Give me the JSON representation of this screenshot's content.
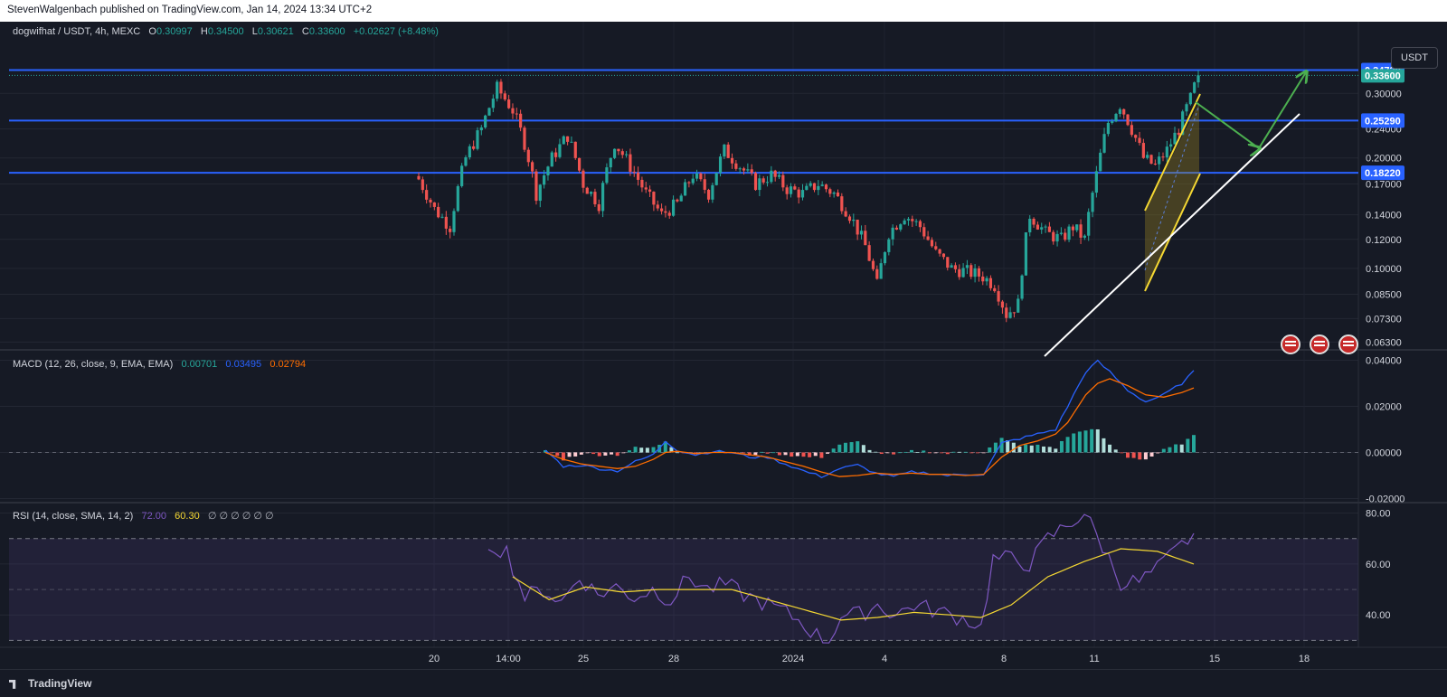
{
  "header": {
    "publisher": "StevenWalgenbach published on TradingView.com, Jan 14, 2024 13:34 UTC+2"
  },
  "footer": {
    "brand": "TradingView"
  },
  "currency_button": "USDT",
  "symbol_legend": {
    "name": "dogwifhat / USDT, 4h, MEXC",
    "o_label": "O",
    "o": "0.30997",
    "h_label": "H",
    "h": "0.34500",
    "l_label": "L",
    "l": "0.30621",
    "c_label": "C",
    "c": "0.33600",
    "change": "+0.02627 (+8.48%)"
  },
  "macd_legend": {
    "name": "MACD (12, 26, close, 9, EMA, EMA)",
    "hist": "0.00701",
    "macd": "0.03495",
    "signal": "0.02794"
  },
  "rsi_legend": {
    "name": "RSI (14, close, SMA, 14, 2)",
    "rsi": "72.00",
    "sma": "60.30",
    "extra": "∅ ∅ ∅ ∅ ∅ ∅"
  },
  "colors": {
    "up": "#26a69a",
    "down": "#ef5350",
    "level": "#2962ff",
    "macd": "#2962ff",
    "signal": "#ff6d00",
    "rsi": "#7e57c2",
    "rsi_sma": "#f5d833"
  },
  "chart_data": [
    {
      "type": "candlestick",
      "title": "dogwifhat / USDT, 4h, MEXC",
      "y_scale": "log",
      "ylim": [
        0.061,
        0.42
      ],
      "y_ticks": [
        "0.30000",
        "0.24000",
        "0.20000",
        "0.17000",
        "0.14000",
        "0.12000",
        "0.10000",
        "0.08500",
        "0.07300",
        "0.06300"
      ],
      "x_ticks": [
        "20",
        "14:00",
        "25",
        "28",
        "2024",
        "4",
        "8",
        "11",
        "15",
        "18"
      ],
      "levels": [
        {
          "label": "0.34730",
          "value": 0.3473
        },
        {
          "label": "0.25290",
          "value": 0.2529
        },
        {
          "label": "0.18220",
          "value": 0.1822
        }
      ],
      "last_price": {
        "label": "0.33600",
        "value": 0.336
      },
      "close_path_anchors": [
        [
          0,
          0.175
        ],
        [
          4,
          0.145
        ],
        [
          8,
          0.13
        ],
        [
          12,
          0.2
        ],
        [
          16,
          0.24
        ],
        [
          20,
          0.31
        ],
        [
          24,
          0.27
        ],
        [
          27,
          0.22
        ],
        [
          30,
          0.16
        ],
        [
          34,
          0.2
        ],
        [
          38,
          0.23
        ],
        [
          42,
          0.17
        ],
        [
          46,
          0.15
        ],
        [
          50,
          0.22
        ],
        [
          54,
          0.19
        ],
        [
          58,
          0.16
        ],
        [
          62,
          0.14
        ],
        [
          66,
          0.15
        ],
        [
          70,
          0.18
        ],
        [
          74,
          0.16
        ],
        [
          78,
          0.21
        ],
        [
          82,
          0.19
        ],
        [
          86,
          0.17
        ],
        [
          90,
          0.18
        ],
        [
          94,
          0.165
        ],
        [
          98,
          0.16
        ],
        [
          102,
          0.17
        ],
        [
          106,
          0.16
        ],
        [
          110,
          0.14
        ],
        [
          114,
          0.115
        ],
        [
          117,
          0.09
        ],
        [
          120,
          0.125
        ],
        [
          124,
          0.14
        ],
        [
          128,
          0.13
        ],
        [
          132,
          0.11
        ],
        [
          136,
          0.1
        ],
        [
          140,
          0.098
        ],
        [
          144,
          0.095
        ],
        [
          147,
          0.09
        ],
        [
          150,
          0.075
        ],
        [
          153,
          0.08
        ],
        [
          156,
          0.14
        ],
        [
          160,
          0.125
        ],
        [
          164,
          0.12
        ],
        [
          167,
          0.13
        ],
        [
          170,
          0.12
        ],
        [
          173,
          0.18
        ],
        [
          176,
          0.25
        ],
        [
          179,
          0.28
        ],
        [
          182,
          0.24
        ],
        [
          185,
          0.2
        ],
        [
          188,
          0.19
        ],
        [
          191,
          0.21
        ],
        [
          194,
          0.24
        ],
        [
          197,
          0.29
        ],
        [
          199,
          0.336
        ]
      ],
      "drawings": [
        {
          "name": "ascending-support-line",
          "color": "#ffffff",
          "from": [
            1155,
            370
          ],
          "to": [
            1437,
            102
          ]
        },
        {
          "name": "rising-channel",
          "color": "#f5d833"
        },
        {
          "name": "projected-path-arrow",
          "color": "#4caf50"
        }
      ]
    },
    {
      "type": "bar",
      "title": "MACD (12, 26, close, 9, EMA, EMA)",
      "ylim": [
        -0.021,
        0.041
      ],
      "y_ticks": [
        "0.04000",
        "0.02000",
        "0.00000",
        "-0.02000"
      ],
      "series": [
        {
          "name": "MACD",
          "last": 0.03495
        },
        {
          "name": "Signal",
          "last": 0.02794
        },
        {
          "name": "Histogram",
          "last": 0.00701
        }
      ],
      "macd_anchors": [
        [
          0,
          0.001
        ],
        [
          3,
          -0.006
        ],
        [
          6,
          -0.0055
        ],
        [
          9,
          -0.007
        ],
        [
          12,
          -0.008
        ],
        [
          15,
          -0.004
        ],
        [
          18,
          -0.001
        ],
        [
          20,
          0.005
        ],
        [
          22,
          0.001
        ],
        [
          25,
          -0.001
        ],
        [
          28,
          0.0005
        ],
        [
          31,
          0.0
        ],
        [
          34,
          -0.002
        ],
        [
          37,
          -0.002
        ],
        [
          40,
          -0.005
        ],
        [
          43,
          -0.008
        ],
        [
          46,
          -0.0105
        ],
        [
          49,
          -0.007
        ],
        [
          52,
          -0.0055
        ],
        [
          55,
          -0.009
        ],
        [
          58,
          -0.0105
        ],
        [
          61,
          -0.0085
        ],
        [
          64,
          -0.009
        ],
        [
          67,
          -0.01
        ],
        [
          70,
          -0.0095
        ],
        [
          73,
          -0.0095
        ],
        [
          76,
          0.004
        ],
        [
          79,
          0.006
        ],
        [
          82,
          0.008
        ],
        [
          85,
          0.01
        ],
        [
          87,
          0.02
        ],
        [
          90,
          0.035
        ],
        [
          92,
          0.0395
        ],
        [
          94,
          0.035
        ],
        [
          97,
          0.027
        ],
        [
          100,
          0.022
        ],
        [
          103,
          0.025
        ],
        [
          106,
          0.03
        ],
        [
          108,
          0.035
        ]
      ],
      "signal_anchors": [
        [
          0,
          0.0
        ],
        [
          3,
          -0.003
        ],
        [
          6,
          -0.005
        ],
        [
          9,
          -0.006
        ],
        [
          12,
          -0.007
        ],
        [
          15,
          -0.006
        ],
        [
          18,
          -0.003
        ],
        [
          20,
          0.0
        ],
        [
          22,
          0.0005
        ],
        [
          25,
          -0.0005
        ],
        [
          28,
          0.0
        ],
        [
          31,
          0.0
        ],
        [
          34,
          -0.001
        ],
        [
          37,
          -0.002
        ],
        [
          40,
          -0.004
        ],
        [
          43,
          -0.006
        ],
        [
          46,
          -0.0085
        ],
        [
          49,
          -0.0105
        ],
        [
          52,
          -0.01
        ],
        [
          55,
          -0.009
        ],
        [
          58,
          -0.0095
        ],
        [
          61,
          -0.009
        ],
        [
          64,
          -0.0095
        ],
        [
          67,
          -0.0095
        ],
        [
          70,
          -0.01
        ],
        [
          73,
          -0.0095
        ],
        [
          76,
          -0.002
        ],
        [
          79,
          0.003
        ],
        [
          82,
          0.005
        ],
        [
          85,
          0.008
        ],
        [
          87,
          0.013
        ],
        [
          90,
          0.025
        ],
        [
          92,
          0.03
        ],
        [
          94,
          0.032
        ],
        [
          97,
          0.029
        ],
        [
          100,
          0.025
        ],
        [
          103,
          0.024
        ],
        [
          106,
          0.026
        ],
        [
          108,
          0.028
        ]
      ]
    },
    {
      "type": "line",
      "title": "RSI (14, close, SMA, 14, 2)",
      "ylim": [
        28,
        82
      ],
      "y_ticks": [
        "80.00",
        "60.00",
        "40.00"
      ],
      "band": [
        30,
        70
      ],
      "series": [
        {
          "name": "RSI",
          "last": 72.0
        },
        {
          "name": "SMA",
          "last": 60.3
        }
      ],
      "rsi_anchors": [
        [
          0,
          68
        ],
        [
          3,
          65
        ],
        [
          6,
          47
        ],
        [
          9,
          50
        ],
        [
          12,
          45
        ],
        [
          15,
          55
        ],
        [
          18,
          48
        ],
        [
          21,
          51
        ],
        [
          24,
          47
        ],
        [
          27,
          50
        ],
        [
          30,
          46
        ],
        [
          33,
          55
        ],
        [
          36,
          50
        ],
        [
          39,
          52
        ],
        [
          42,
          48
        ],
        [
          45,
          45
        ],
        [
          48,
          42
        ],
        [
          51,
          38
        ],
        [
          54,
          32
        ],
        [
          56,
          30
        ],
        [
          58,
          40
        ],
        [
          61,
          40
        ],
        [
          64,
          44
        ],
        [
          67,
          40
        ],
        [
          70,
          44
        ],
        [
          73,
          42
        ],
        [
          76,
          40
        ],
        [
          79,
          38
        ],
        [
          81,
          35
        ],
        [
          83,
          62
        ],
        [
          86,
          62
        ],
        [
          89,
          60
        ],
        [
          92,
          70
        ],
        [
          95,
          75
        ],
        [
          98,
          80
        ],
        [
          101,
          67
        ],
        [
          104,
          53
        ],
        [
          107,
          53
        ],
        [
          110,
          58
        ],
        [
          113,
          65
        ],
        [
          116,
          72
        ]
      ],
      "sma_anchors": [
        [
          4,
          55
        ],
        [
          10,
          46
        ],
        [
          16,
          51
        ],
        [
          22,
          49
        ],
        [
          28,
          50
        ],
        [
          34,
          50
        ],
        [
          40,
          50
        ],
        [
          46,
          46
        ],
        [
          52,
          42
        ],
        [
          58,
          38
        ],
        [
          64,
          39
        ],
        [
          70,
          41
        ],
        [
          76,
          40
        ],
        [
          81,
          39
        ],
        [
          86,
          44
        ],
        [
          92,
          55
        ],
        [
          98,
          61
        ],
        [
          104,
          66
        ],
        [
          110,
          65
        ],
        [
          116,
          60
        ]
      ]
    }
  ]
}
